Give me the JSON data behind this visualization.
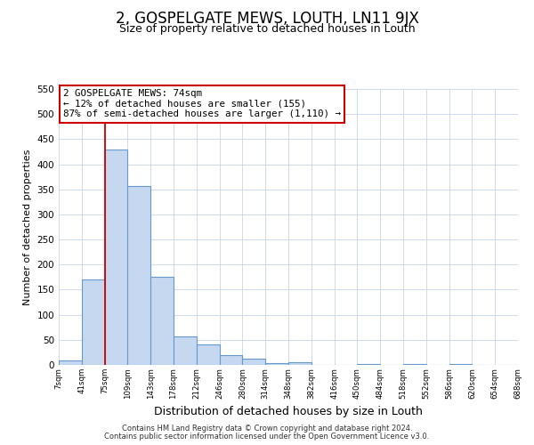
{
  "title": "2, GOSPELGATE MEWS, LOUTH, LN11 9JX",
  "subtitle": "Size of property relative to detached houses in Louth",
  "xlabel": "Distribution of detached houses by size in Louth",
  "ylabel": "Number of detached properties",
  "bar_values": [
    8,
    170,
    430,
    357,
    175,
    57,
    40,
    20,
    12,
    3,
    5,
    0,
    0,
    2,
    0,
    1,
    0,
    1,
    0,
    0
  ],
  "bin_labels": [
    "7sqm",
    "41sqm",
    "75sqm",
    "109sqm",
    "143sqm",
    "178sqm",
    "212sqm",
    "246sqm",
    "280sqm",
    "314sqm",
    "348sqm",
    "382sqm",
    "416sqm",
    "450sqm",
    "484sqm",
    "518sqm",
    "552sqm",
    "586sqm",
    "620sqm",
    "654sqm",
    "688sqm"
  ],
  "bar_color": "#c5d8f0",
  "bar_edge_color": "#6699cc",
  "ylim": [
    0,
    550
  ],
  "yticks": [
    0,
    50,
    100,
    150,
    200,
    250,
    300,
    350,
    400,
    450,
    500,
    550
  ],
  "marker_x_label": "75sqm",
  "marker_bin_index": 2,
  "marker_label": "2 GOSPELGATE MEWS: 74sqm",
  "annotation_line1": "← 12% of detached houses are smaller (155)",
  "annotation_line2": "87% of semi-detached houses are larger (1,110) →",
  "marker_color": "#cc0000",
  "box_color": "#cc0000",
  "footer1": "Contains HM Land Registry data © Crown copyright and database right 2024.",
  "footer2": "Contains public sector information licensed under the Open Government Licence v3.0.",
  "background_color": "#ffffff",
  "grid_color": "#c8d4e8",
  "title_fontsize": 12,
  "subtitle_fontsize": 9
}
